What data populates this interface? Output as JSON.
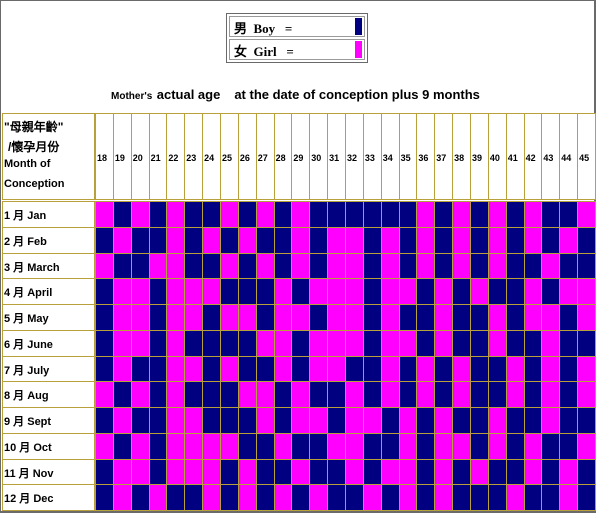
{
  "legend": {
    "boy_label": "男  Boy   =",
    "girl_label": "女  Girl   =",
    "boy_color": "#000080",
    "girl_color": "#ff00ff"
  },
  "subtitle": {
    "part1": "Mother's",
    "part2": "actual age",
    "part3": "at the date of conception plus 9 months"
  },
  "corner": {
    "line1": "\"母親年齡\"",
    "line2": "/懷孕月份",
    "line3": "Month of",
    "line4": "Conception"
  },
  "ages": [
    "18",
    "19",
    "20",
    "21",
    "22",
    "23",
    "24",
    "25",
    "26",
    "27",
    "28",
    "29",
    "30",
    "31",
    "32",
    "33",
    "34",
    "35",
    "36",
    "37",
    "38",
    "39",
    "40",
    "41",
    "42",
    "43",
    "44",
    "45"
  ],
  "months": [
    "1 月  Jan",
    "2 月  Feb",
    "3 月  March",
    "4 月  April",
    "5 月  May",
    "6 月  June",
    "7 月  July",
    "8 月  Aug",
    "9 月  Sept",
    "10 月  Oct",
    "11 月  Nov",
    "12 月  Dec"
  ],
  "grid": [
    "GBGBGBBGBGBGBBBBBBGBGBGBGBBG",
    "BGBBGBGBGBBGBGGBGBGBGBGBGBGB",
    "GBBGGBBGBGBGBGGBGBGBGBGBBGBB",
    "BGGBGGGBBBGBGGGBGGBGBGBBGBGG",
    "BGGBGGBGGBGGBGGBGBBGBBGBGGBG",
    "BGGBGBBBBGGBGGGBGGBGBBGBBGBB",
    "BGBBGGBGBBGBGGBBGBGBGBBGBGBG",
    "GBGBGBBBGGBGBBGBGBGBGBBGBGBG",
    "BGBBGGBBBGBGGBGGBGBGBBGBBGBB",
    "GBGBGGGGBBGBBGGBBGBGGBGBGBBG",
    "BGGBGGGBGBBGBBGBGGBGBGBBGBGB",
    "BGBGBBGBGBGBGBBGBGBGBBBGBBGB"
  ]
}
